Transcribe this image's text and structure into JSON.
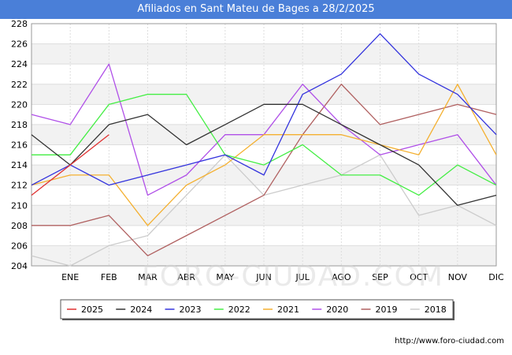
{
  "chart_data": {
    "type": "line",
    "title": "Afiliados en Sant Mateu de Bages a 28/2/2025",
    "categories": [
      "",
      "ENE",
      "FEB",
      "MAR",
      "ABR",
      "MAY",
      "JUN",
      "JUL",
      "AGO",
      "SEP",
      "OCT",
      "NOV",
      "DIC"
    ],
    "ylim": [
      204,
      228
    ],
    "yticks": [
      204,
      206,
      208,
      210,
      212,
      214,
      216,
      218,
      220,
      222,
      224,
      226,
      228
    ],
    "grid": true,
    "legend_position": "bottom",
    "series": [
      {
        "name": "2025",
        "color": "#e03030",
        "values": [
          211,
          214,
          217,
          null,
          null,
          null,
          null,
          null,
          null,
          null,
          null,
          null,
          null
        ]
      },
      {
        "name": "2024",
        "color": "#333333",
        "values": [
          217,
          214,
          218,
          219,
          216,
          218,
          220,
          220,
          218,
          216,
          214,
          210,
          211
        ]
      },
      {
        "name": "2023",
        "color": "#3333dd",
        "values": [
          212,
          214,
          212,
          213,
          214,
          215,
          213,
          221,
          223,
          227,
          223,
          221,
          217
        ]
      },
      {
        "name": "2022",
        "color": "#44ee44",
        "values": [
          215,
          215,
          220,
          221,
          221,
          215,
          214,
          216,
          213,
          213,
          211,
          214,
          212
        ]
      },
      {
        "name": "2021",
        "color": "#f4b030",
        "values": [
          212,
          213,
          213,
          208,
          212,
          214,
          217,
          217,
          217,
          216,
          215,
          222,
          215
        ]
      },
      {
        "name": "2020",
        "color": "#b050e8",
        "values": [
          219,
          218,
          224,
          211,
          213,
          217,
          217,
          222,
          218,
          215,
          216,
          217,
          212
        ]
      },
      {
        "name": "2019",
        "color": "#b06060",
        "values": [
          208,
          208,
          209,
          205,
          207,
          209,
          211,
          217,
          222,
          218,
          219,
          220,
          219
        ]
      },
      {
        "name": "2018",
        "color": "#cccccc",
        "values": [
          205,
          204,
          206,
          207,
          211,
          215,
          211,
          212,
          213,
          215,
          209,
          210,
          208
        ]
      }
    ]
  },
  "watermark": "FORO-CIUDAD.COM",
  "source": "http://www.foro-ciudad.com"
}
